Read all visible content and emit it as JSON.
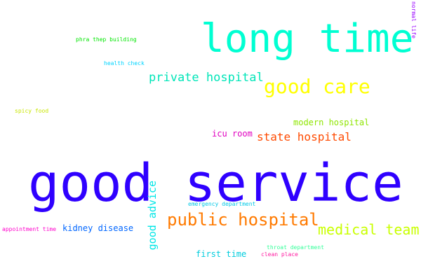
{
  "words": [
    {
      "text": "good service",
      "color": "#2f00ff"
    },
    {
      "text": "long time",
      "color": "#00ffd2"
    },
    {
      "text": "good care",
      "color": "#ffff00"
    },
    {
      "text": "private hospital",
      "color": "#00e5b8"
    },
    {
      "text": "public hospital",
      "color": "#ff7a00"
    },
    {
      "text": "medical team",
      "color": "#c9ff00"
    },
    {
      "text": "state hospital",
      "color": "#ff4a00"
    },
    {
      "text": "modern hospital",
      "color": "#8ee600"
    },
    {
      "text": "icu room",
      "color": "#e000c0"
    },
    {
      "text": "kidney disease",
      "color": "#0066ff"
    },
    {
      "text": "good advice",
      "color": "#00e6e6"
    },
    {
      "text": "first time",
      "color": "#00ccdd"
    },
    {
      "text": "emergency department",
      "color": "#00c8e6"
    },
    {
      "text": "throat department",
      "color": "#33ff99"
    },
    {
      "text": "clean place",
      "color": "#ff1aa0"
    },
    {
      "text": "appointment time",
      "color": "#ff00cc"
    },
    {
      "text": "health check",
      "color": "#00d4ff"
    },
    {
      "text": "phra thep building",
      "color": "#00e600"
    },
    {
      "text": "spicy food",
      "color": "#c8e600"
    },
    {
      "text": "normal life",
      "color": "#9900ff"
    }
  ]
}
